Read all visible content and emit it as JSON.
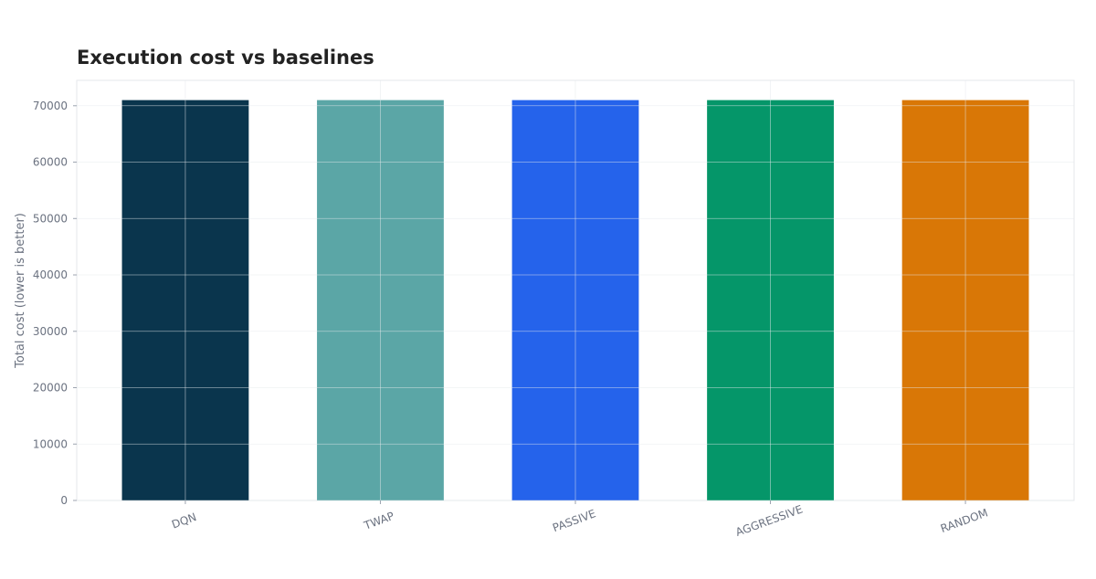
{
  "chart_data": {
    "type": "bar",
    "title": "Execution cost vs baselines",
    "y_label": "Total cost (lower is better)",
    "categories": [
      "DQN",
      "TWAP",
      "PASSIVE",
      "AGGRESSIVE",
      "RANDOM"
    ],
    "values": [
      71000,
      71000,
      71000,
      71000,
      71000
    ],
    "colors": [
      "#0a354d",
      "#5ba6a6",
      "#2563eb",
      "#059669",
      "#d97706"
    ],
    "ylim": [
      0,
      74500
    ],
    "yticks": [
      0,
      10000,
      20000,
      30000,
      40000,
      50000,
      60000,
      70000
    ],
    "grid": true
  }
}
